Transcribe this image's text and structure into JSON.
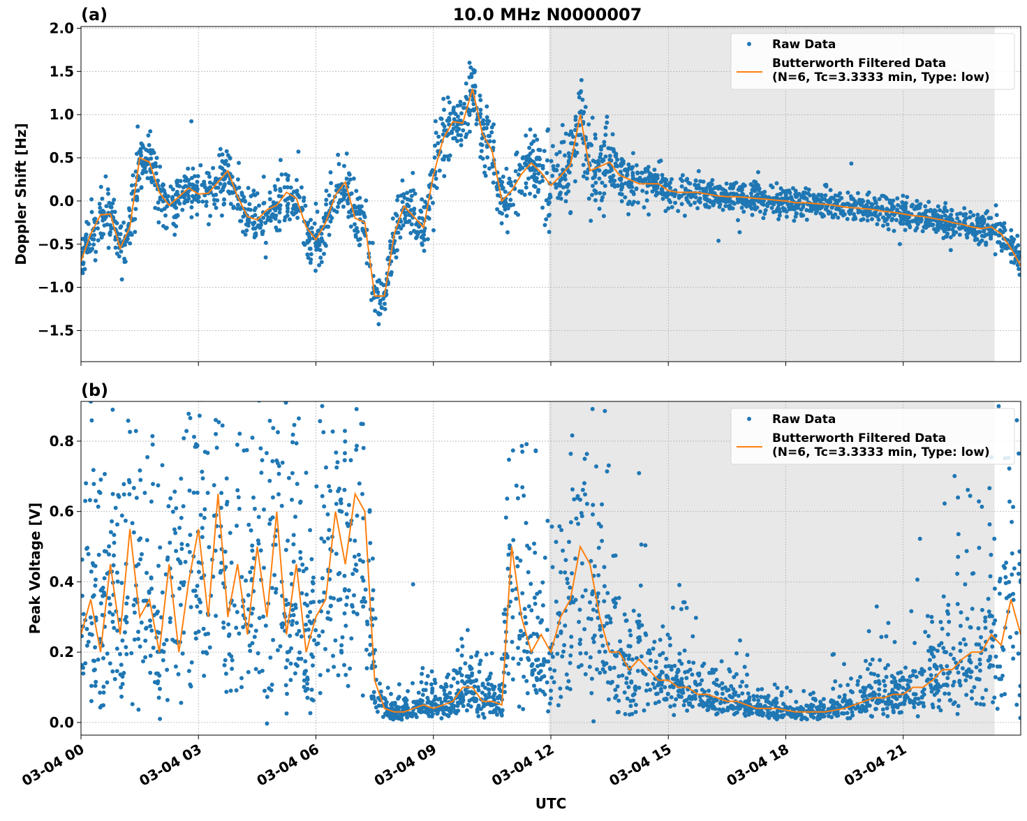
{
  "chart_data": [
    {
      "type": "scatter+line",
      "panel_label": "(a)",
      "title": "10.0 MHz N0000007",
      "xlabel": "",
      "ylabel": "Doppler Shift [Hz]",
      "ylim": [
        -1.86,
        2.02
      ],
      "yticks": [
        -1.5,
        -1.0,
        -0.5,
        0.0,
        0.5,
        1.0,
        1.5,
        2.0
      ],
      "ytick_labels": [
        "−1.5",
        "−1.0",
        "−0.5",
        "0.0",
        "0.5",
        "1.0",
        "1.5",
        "2.0"
      ],
      "xlim": [
        "03-04 00:00",
        "03-05 00:00"
      ],
      "grid": true,
      "shaded_span": [
        "11:57",
        "23:20"
      ],
      "shade_color": "#e8e8e8",
      "legend_placement": "upper right",
      "legend": [
        "Raw Data",
        "Butterworth Filtered Data",
        "(N=6, Tc=3.3333 min, Type: low)"
      ],
      "series": [
        {
          "name": "Raw Data",
          "kind": "scatter",
          "color": "#1f77b4",
          "spread": "approx ±0.25 Hz about filtered curve"
        },
        {
          "name": "Butterworth Filtered Data (N=6, Tc=3.3333 min, Type: low)",
          "kind": "line",
          "color": "#ff7f0e",
          "values": [
            -0.7,
            -0.38,
            -0.16,
            -0.15,
            -0.55,
            -0.3,
            0.5,
            0.45,
            0.1,
            -0.05,
            0.05,
            0.15,
            0.08,
            0.09,
            0.22,
            0.35,
            0.05,
            -0.18,
            -0.22,
            -0.1,
            -0.05,
            0.1,
            0.03,
            -0.3,
            -0.45,
            -0.25,
            0.07,
            0.22,
            -0.2,
            -0.25,
            -1.1,
            -1.1,
            -0.38,
            -0.06,
            -0.18,
            -0.31,
            0.3,
            0.72,
            0.92,
            0.9,
            1.3,
            0.78,
            0.58,
            0.0,
            0.12,
            0.31,
            0.44,
            0.33,
            0.18,
            0.29,
            0.42,
            1.0,
            0.35,
            0.4,
            0.45,
            0.3,
            0.25,
            0.2,
            0.2,
            0.2,
            0.12,
            0.1,
            0.1,
            0.1,
            0.08,
            0.06,
            0.05,
            0.05,
            0.04,
            0.03,
            0.02,
            0.01,
            0.0,
            -0.02,
            -0.02,
            -0.03,
            -0.04,
            -0.05,
            -0.07,
            -0.08,
            -0.09,
            -0.1,
            -0.12,
            -0.13,
            -0.15,
            -0.17,
            -0.18,
            -0.2,
            -0.22,
            -0.25,
            -0.27,
            -0.3,
            -0.32,
            -0.3,
            -0.38,
            -0.55,
            -0.75
          ]
        }
      ]
    },
    {
      "type": "scatter+line",
      "panel_label": "(b)",
      "xlabel": "UTC",
      "ylabel": "Peak Voltage [V]",
      "ylim": [
        -0.036,
        0.913
      ],
      "yticks": [
        0.0,
        0.2,
        0.4,
        0.6,
        0.8
      ],
      "ytick_labels": [
        "0.0",
        "0.2",
        "0.4",
        "0.6",
        "0.8"
      ],
      "xlim": [
        "03-04 00:00",
        "03-05 00:00"
      ],
      "xticks": [
        "00:00",
        "03:00",
        "06:00",
        "09:00",
        "12:00",
        "15:00",
        "18:00",
        "21:00"
      ],
      "xtick_labels": [
        "03-04 00",
        "03-04 03",
        "03-04 06",
        "03-04 09",
        "03-04 12",
        "03-04 15",
        "03-04 18",
        "03-04 21"
      ],
      "grid": true,
      "shaded_span": [
        "11:57",
        "23:20"
      ],
      "shade_color": "#e8e8e8",
      "legend_placement": "upper right",
      "legend": [
        "Raw Data",
        "Butterworth Filtered Data",
        "(N=6, Tc=3.3333 min, Type: low)"
      ],
      "series": [
        {
          "name": "Raw Data",
          "kind": "scatter",
          "color": "#1f77b4",
          "spread": "approx 0.3x to 2x of filtered curve"
        },
        {
          "name": "Butterworth Filtered Data (N=6, Tc=3.3333 min, Type: low)",
          "kind": "line",
          "color": "#ff7f0e",
          "values": [
            0.25,
            0.35,
            0.2,
            0.45,
            0.25,
            0.55,
            0.3,
            0.35,
            0.2,
            0.45,
            0.2,
            0.4,
            0.55,
            0.3,
            0.65,
            0.3,
            0.45,
            0.25,
            0.5,
            0.3,
            0.6,
            0.25,
            0.45,
            0.2,
            0.3,
            0.35,
            0.6,
            0.45,
            0.65,
            0.6,
            0.12,
            0.04,
            0.03,
            0.03,
            0.04,
            0.05,
            0.04,
            0.05,
            0.06,
            0.1,
            0.1,
            0.06,
            0.06,
            0.05,
            0.5,
            0.3,
            0.2,
            0.25,
            0.2,
            0.3,
            0.35,
            0.5,
            0.45,
            0.3,
            0.2,
            0.2,
            0.15,
            0.18,
            0.15,
            0.12,
            0.12,
            0.1,
            0.1,
            0.08,
            0.08,
            0.07,
            0.06,
            0.06,
            0.05,
            0.04,
            0.04,
            0.04,
            0.035,
            0.03,
            0.03,
            0.03,
            0.03,
            0.035,
            0.04,
            0.05,
            0.06,
            0.07,
            0.07,
            0.08,
            0.08,
            0.1,
            0.1,
            0.12,
            0.15,
            0.15,
            0.18,
            0.2,
            0.2,
            0.25,
            0.22,
            0.35,
            0.25
          ]
        }
      ]
    }
  ],
  "x_times": [
    "00:00",
    "00:15",
    "00:30",
    "00:45",
    "01:00",
    "01:15",
    "01:30",
    "01:45",
    "02:00",
    "02:15",
    "02:30",
    "02:45",
    "03:00",
    "03:15",
    "03:30",
    "03:45",
    "04:00",
    "04:15",
    "04:30",
    "04:45",
    "05:00",
    "05:15",
    "05:30",
    "05:45",
    "06:00",
    "06:15",
    "06:30",
    "06:45",
    "07:00",
    "07:15",
    "07:30",
    "07:45",
    "08:00",
    "08:15",
    "08:30",
    "08:45",
    "09:00",
    "09:15",
    "09:30",
    "09:45",
    "10:00",
    "10:15",
    "10:30",
    "10:45",
    "11:00",
    "11:15",
    "11:30",
    "11:45",
    "12:00",
    "12:15",
    "12:30",
    "12:45",
    "13:00",
    "13:15",
    "13:30",
    "13:45",
    "14:00",
    "14:15",
    "14:30",
    "14:45",
    "15:00",
    "15:15",
    "15:30",
    "15:45",
    "16:00",
    "16:15",
    "16:30",
    "16:45",
    "17:00",
    "17:15",
    "17:30",
    "17:45",
    "18:00",
    "18:15",
    "18:30",
    "18:45",
    "19:00",
    "19:15",
    "19:30",
    "19:45",
    "20:00",
    "20:15",
    "20:30",
    "20:45",
    "21:00",
    "21:15",
    "21:30",
    "21:45",
    "22:00",
    "22:15",
    "22:30",
    "22:45",
    "23:00",
    "23:15",
    "23:30",
    "23:45",
    "24:00"
  ]
}
